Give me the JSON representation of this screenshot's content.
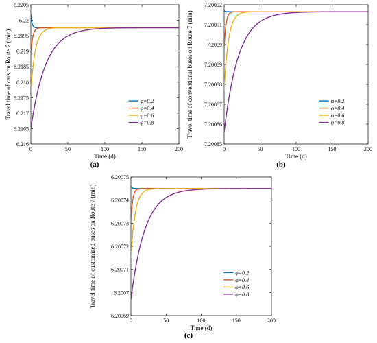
{
  "chart_data": [
    {
      "type": "line",
      "panel_label": "(a)",
      "xlabel": "Time (d)",
      "ylabel": "Travel time of cars on Route 7 (min)",
      "xlim": [
        0,
        200
      ],
      "ylim": [
        6.216,
        6.2205
      ],
      "x_ticks": [
        "0",
        "50",
        "100",
        "150",
        "200"
      ],
      "y_ticks": [
        "6.216",
        "6.2165",
        "6.217",
        "6.2175",
        "6.218",
        "6.2185",
        "6.219",
        "6.2195",
        "6.22",
        "6.2205"
      ],
      "legend_position": "lower-right",
      "series": [
        {
          "name": "φ=0.2",
          "color": "#0072BD",
          "start": 6.2202,
          "steady": 6.21976,
          "tau": 1.5
        },
        {
          "name": "φ=0.4",
          "color": "#D95319",
          "start": 6.2189,
          "steady": 6.21976,
          "tau": 2.5
        },
        {
          "name": "φ=0.6",
          "color": "#EDB120",
          "start": 6.2177,
          "steady": 6.21976,
          "tau": 6
        },
        {
          "name": "φ=0.8",
          "color": "#7E2F8E",
          "start": 6.2165,
          "steady": 6.21976,
          "tau": 20
        }
      ]
    },
    {
      "type": "line",
      "panel_label": "(b)",
      "xlabel": "Time (d)",
      "ylabel": "Travel time of conventional buses on Route 7 (min)",
      "xlim": [
        0,
        200
      ],
      "ylim": [
        7.20085,
        7.20092
      ],
      "x_ticks": [
        "0",
        "50",
        "100",
        "150",
        "200"
      ],
      "y_ticks": [
        "7.20085",
        "7.20086",
        "7.20087",
        "7.20088",
        "7.20089",
        "7.2009",
        "7.20091",
        "7.20092"
      ],
      "legend_position": "lower-right",
      "series": [
        {
          "name": "φ=0.2",
          "color": "#0072BD",
          "start": 7.200917,
          "steady": 7.2009165,
          "tau": 1.5
        },
        {
          "name": "φ=0.4",
          "color": "#D95319",
          "start": 7.200898,
          "steady": 7.2009165,
          "tau": 2.5
        },
        {
          "name": "φ=0.6",
          "color": "#EDB120",
          "start": 7.200877,
          "steady": 7.2009165,
          "tau": 6
        },
        {
          "name": "φ=0.8",
          "color": "#7E2F8E",
          "start": 7.200856,
          "steady": 7.2009165,
          "tau": 20
        }
      ]
    },
    {
      "type": "line",
      "panel_label": "(c)",
      "xlabel": "Time (d)",
      "ylabel": "Travel time of customized buses on Route 7 (min)",
      "xlim": [
        0,
        200
      ],
      "ylim": [
        6.20069,
        6.20075
      ],
      "x_ticks": [
        "0",
        "50",
        "100",
        "150",
        "200"
      ],
      "y_ticks": [
        "6.20069",
        "6.2007",
        "6.20071",
        "6.20072",
        "6.20073",
        "6.20074",
        "6.20075"
      ],
      "legend_position": "lower-right",
      "series": [
        {
          "name": "φ=0.2",
          "color": "#0072BD",
          "start": 6.200746,
          "steady": 6.200745,
          "tau": 1.5
        },
        {
          "name": "φ=0.4",
          "color": "#D95319",
          "start": 6.200731,
          "steady": 6.200745,
          "tau": 2.5
        },
        {
          "name": "φ=0.6",
          "color": "#EDB120",
          "start": 6.200715,
          "steady": 6.200745,
          "tau": 6
        },
        {
          "name": "φ=0.8",
          "color": "#7E2F8E",
          "start": 6.200697,
          "steady": 6.200745,
          "tau": 20
        }
      ]
    }
  ]
}
